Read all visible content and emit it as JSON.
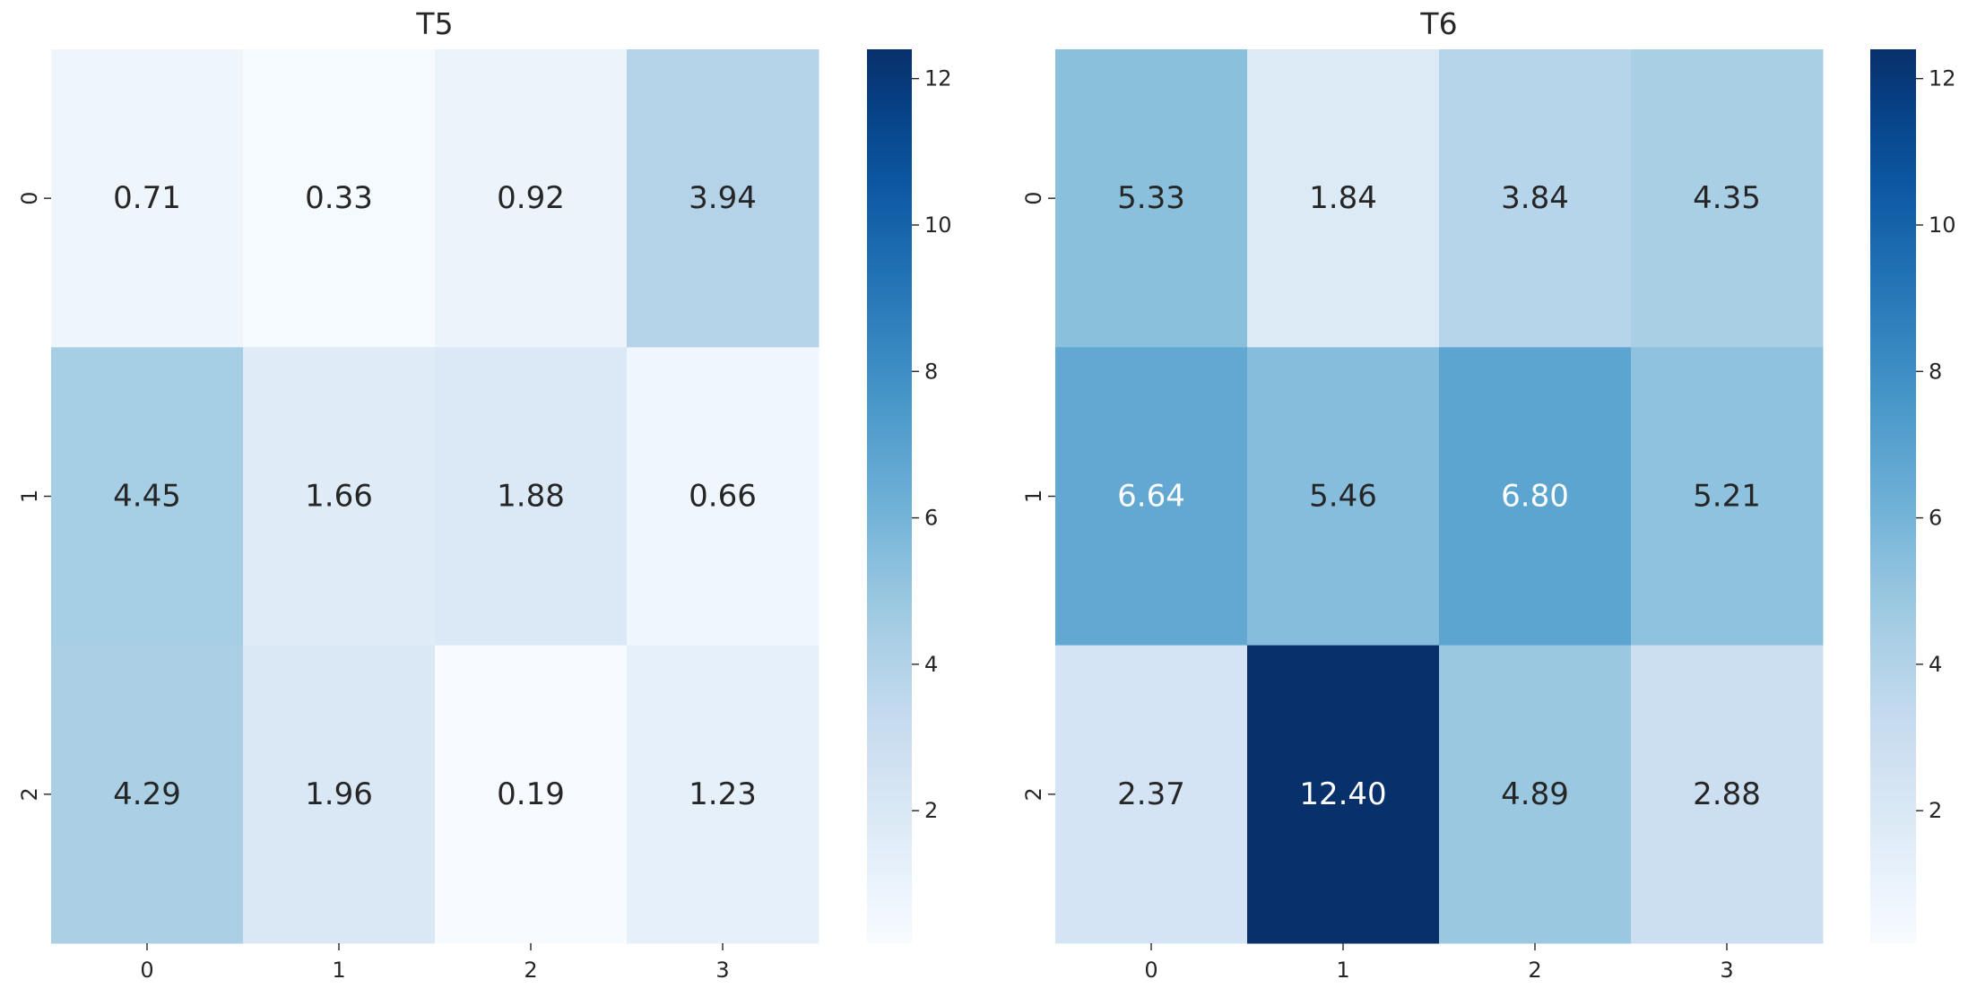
{
  "chart_data": [
    {
      "type": "heatmap",
      "title": "T5",
      "xlabel": "",
      "ylabel": "",
      "x_ticks": [
        "0",
        "1",
        "2",
        "3"
      ],
      "y_ticks": [
        "0",
        "1",
        "2"
      ],
      "values": [
        [
          0.71,
          0.33,
          0.92,
          3.94
        ],
        [
          4.45,
          1.66,
          1.88,
          0.66
        ],
        [
          4.29,
          1.96,
          0.19,
          1.23
        ]
      ],
      "cell_labels": [
        [
          "0.71",
          "0.33",
          "0.92",
          "3.94"
        ],
        [
          "4.45",
          "1.66",
          "1.88",
          "0.66"
        ],
        [
          "4.29",
          "1.96",
          "0.19",
          "1.23"
        ]
      ],
      "colormap": "Blues",
      "vmin": 0.19,
      "vmax": 12.4,
      "colorbar_ticks": [
        "2",
        "4",
        "6",
        "8",
        "10",
        "12"
      ],
      "colorbar_tick_values": [
        2,
        4,
        6,
        8,
        10,
        12
      ]
    },
    {
      "type": "heatmap",
      "title": "T6",
      "xlabel": "",
      "ylabel": "",
      "x_ticks": [
        "0",
        "1",
        "2",
        "3"
      ],
      "y_ticks": [
        "0",
        "1",
        "2"
      ],
      "values": [
        [
          5.33,
          1.84,
          3.84,
          4.35
        ],
        [
          6.64,
          5.46,
          6.8,
          5.21
        ],
        [
          2.37,
          12.4,
          4.89,
          2.88
        ]
      ],
      "cell_labels": [
        [
          "5.33",
          "1.84",
          "3.84",
          "4.35"
        ],
        [
          "6.64",
          "5.46",
          "6.80",
          "5.21"
        ],
        [
          "2.37",
          "12.40",
          "4.89",
          "2.88"
        ]
      ],
      "colormap": "Blues",
      "vmin": 0.19,
      "vmax": 12.4,
      "colorbar_ticks": [
        "2",
        "4",
        "6",
        "8",
        "10",
        "12"
      ],
      "colorbar_tick_values": [
        2,
        4,
        6,
        8,
        10,
        12
      ]
    }
  ],
  "colors": {
    "text_dark": "#262626",
    "text_light": "#ffffff",
    "blues_stops": [
      "#f7fbff",
      "#deebf7",
      "#c6dbef",
      "#9ecae1",
      "#6baed6",
      "#4292c6",
      "#2171b5",
      "#08519c",
      "#08306b"
    ]
  }
}
